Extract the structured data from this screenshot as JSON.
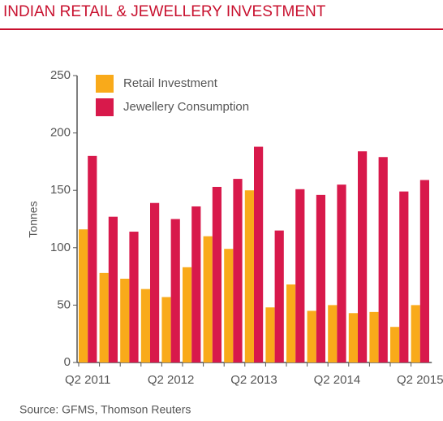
{
  "chart_data": {
    "type": "bar",
    "title": "INDIAN RETAIL & JEWELLERY INVESTMENT",
    "ylabel": "Tonnes",
    "source": "Source: GFMS, Thomson Reuters",
    "categories": [
      "Q2 2011",
      null,
      null,
      null,
      "Q2 2012",
      null,
      null,
      null,
      "Q2 2013",
      null,
      null,
      null,
      "Q2 2014",
      null,
      null,
      null,
      "Q2 2015"
    ],
    "series": [
      {
        "name": "Retail Investment",
        "color": "#f9aa1a",
        "values": [
          116,
          78,
          73,
          64,
          57,
          83,
          110,
          99,
          150,
          48,
          68,
          45,
          50,
          43,
          44,
          31,
          50
        ]
      },
      {
        "name": "Jewellery Consumption",
        "color": "#d8194b",
        "values": [
          180,
          127,
          114,
          139,
          125,
          136,
          153,
          160,
          188,
          115,
          151,
          146,
          155,
          184,
          179,
          149,
          159
        ]
      }
    ],
    "ylim": [
      0,
      250
    ],
    "yticks": [
      0,
      50,
      100,
      150,
      200,
      250
    ],
    "grid": false
  }
}
